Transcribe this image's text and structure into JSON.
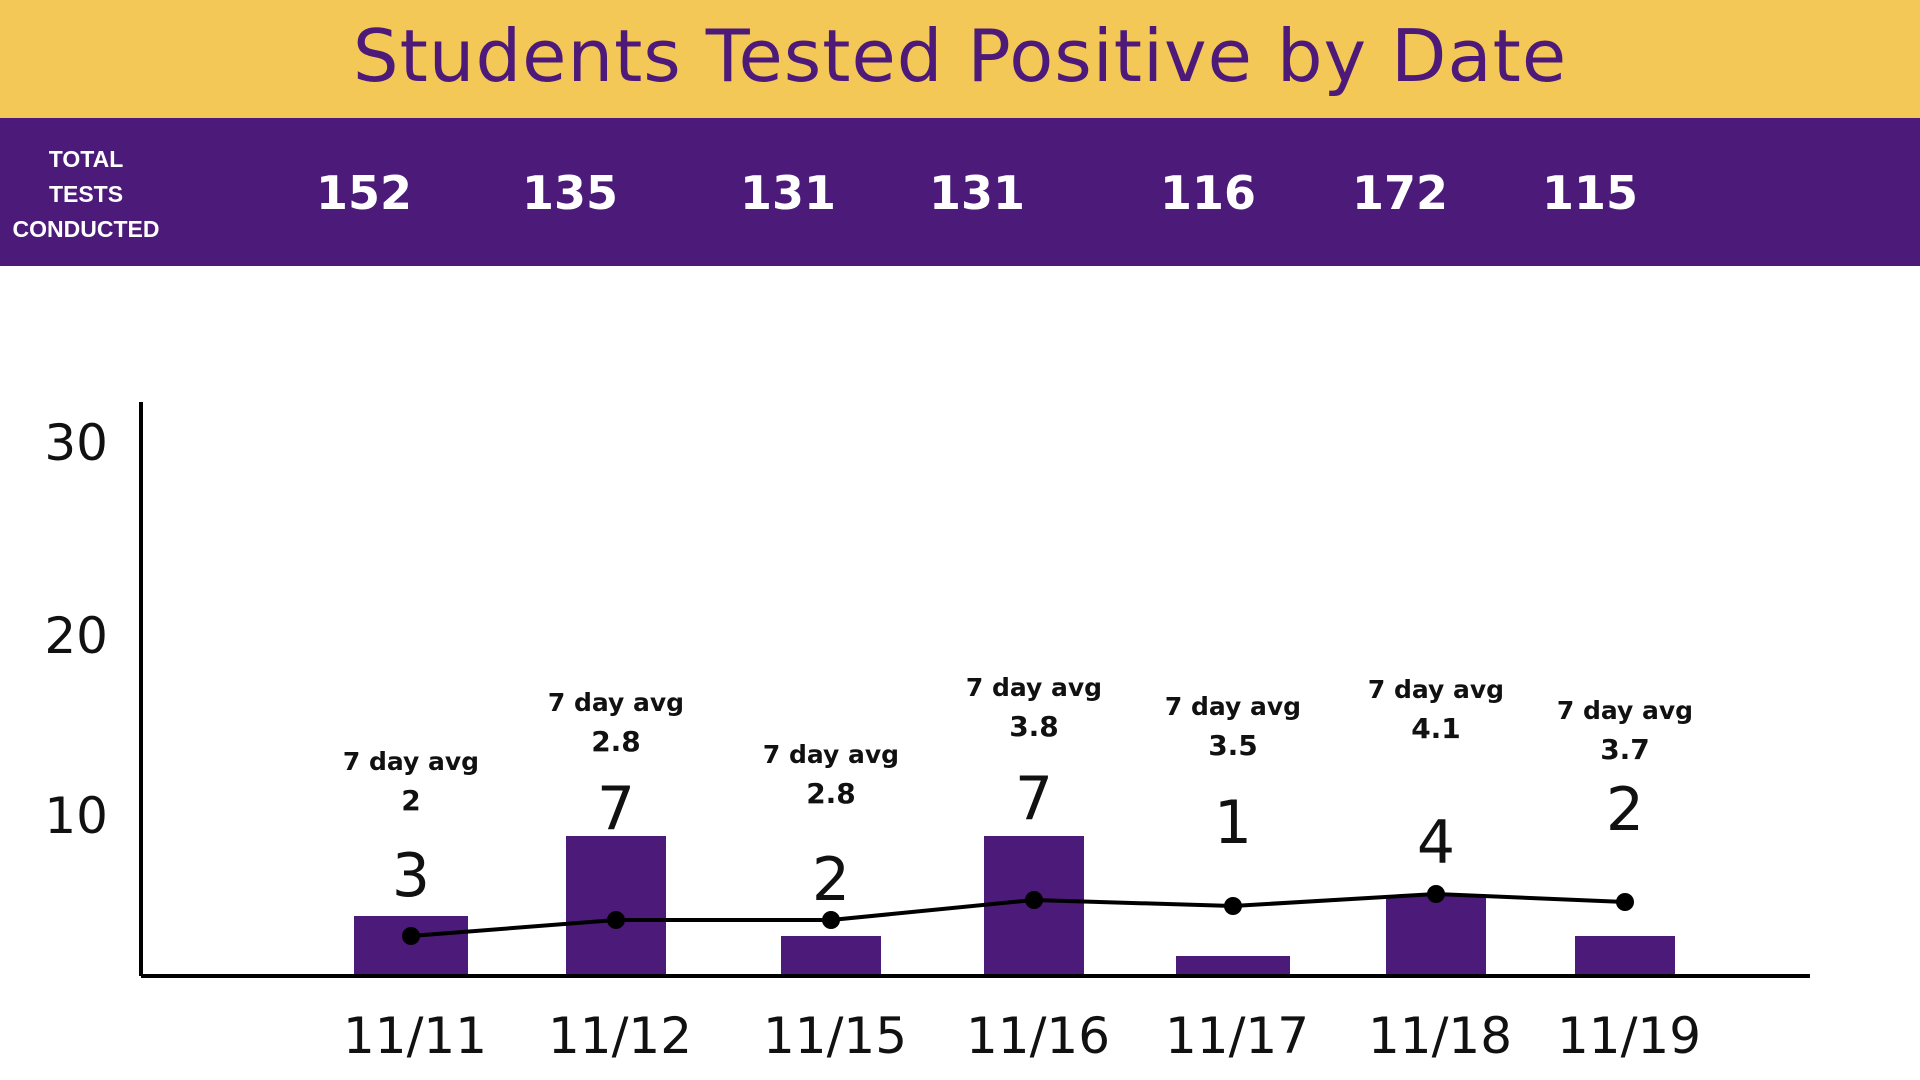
{
  "chart_data": {
    "type": "bar",
    "title": "Students Tested Positive by Date",
    "categories": [
      "11/11",
      "11/12",
      "11/15",
      "11/16",
      "11/17",
      "11/18",
      "11/19"
    ],
    "series": [
      {
        "type": "bar",
        "values": [
          3,
          7,
          2,
          7,
          1,
          4,
          2
        ]
      },
      {
        "type": "line",
        "values": [
          2,
          2.8,
          2.8,
          3.8,
          3.5,
          4.1,
          3.7
        ]
      }
    ],
    "total_tests_label": [
      "TOTAL",
      "TESTS",
      "CONDUCTED"
    ],
    "total_tests": [
      "152",
      "135",
      "131",
      "131",
      "116",
      "172",
      "115"
    ],
    "value_labels": [
      "3",
      "7",
      "2",
      "7",
      "1",
      "4",
      "2"
    ],
    "avg_caption": "7 day avg",
    "avg_labels": [
      "2",
      "2.8",
      "2.8",
      "3.8",
      "3.5",
      "4.1",
      "3.7"
    ],
    "yticks": [
      "10",
      "20",
      "30"
    ],
    "ylim": [
      0,
      30
    ],
    "grid": false,
    "colors": {
      "header_bg": "#f4c857",
      "title_text": "#4e1a7a",
      "band_bg": "#4c1a78",
      "bar": "#4c1a78",
      "line": "#000000"
    }
  }
}
